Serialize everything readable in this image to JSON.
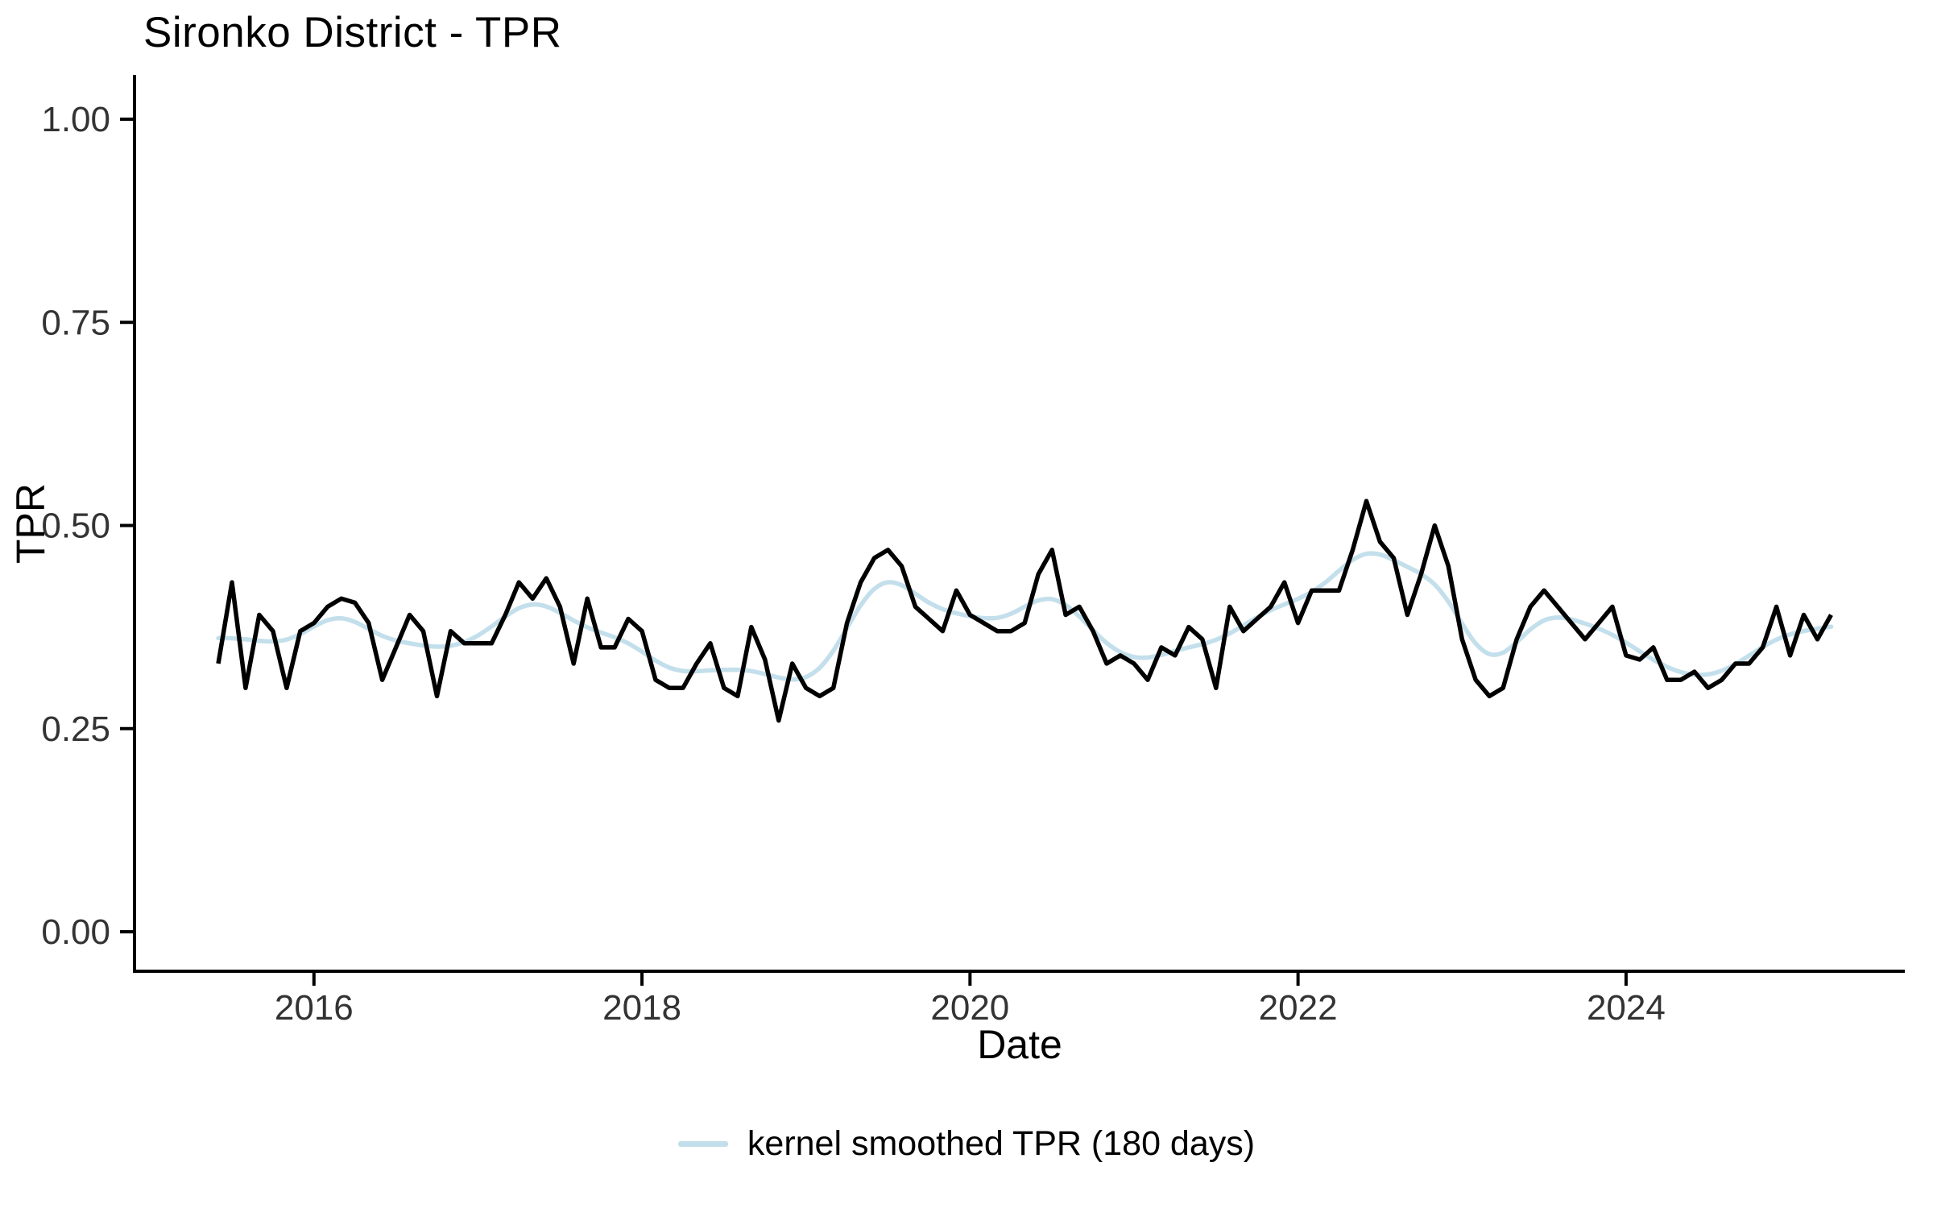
{
  "title": "Sironko District - TPR",
  "axes": {
    "x_label": "Date",
    "y_label": "TPR",
    "y_ticks": [
      {
        "value": 0.0,
        "label": "0.00"
      },
      {
        "value": 0.25,
        "label": "0.25"
      },
      {
        "value": 0.5,
        "label": "0.50"
      },
      {
        "value": 0.75,
        "label": "0.75"
      },
      {
        "value": 1.0,
        "label": "1.00"
      }
    ],
    "x_ticks": [
      {
        "year": 2016,
        "label": "2016"
      },
      {
        "year": 2018,
        "label": "2018"
      },
      {
        "year": 2020,
        "label": "2020"
      },
      {
        "year": 2022,
        "label": "2022"
      },
      {
        "year": 2024,
        "label": "2024"
      }
    ]
  },
  "legend": {
    "label": "kernel smoothed TPR (180 days)",
    "line_color": "#c3dfeb"
  },
  "colors": {
    "raw_line": "#000000",
    "smoothed_line": "#c3dfeb",
    "axis": "#000000",
    "tick_text": "#333333"
  },
  "chart_data": {
    "type": "line",
    "title": "Sironko District - TPR",
    "xlabel": "Date",
    "ylabel": "TPR",
    "ylim": [
      0,
      1
    ],
    "y_tick_values": [
      0,
      0.25,
      0.5,
      0.75,
      1
    ],
    "x_tick_years": [
      2016,
      2018,
      2020,
      2022,
      2024
    ],
    "start_month": "2015-06",
    "end_month": "2025-04",
    "frequency": "monthly",
    "legend_position": "bottom",
    "grid": false,
    "series": [
      {
        "name": "TPR",
        "color": "#000000",
        "values": [
          0.33,
          0.43,
          0.3,
          0.39,
          0.37,
          0.3,
          0.37,
          0.38,
          0.4,
          0.41,
          0.405,
          0.38,
          0.31,
          0.35,
          0.39,
          0.37,
          0.29,
          0.37,
          0.355,
          0.355,
          0.355,
          0.39,
          0.43,
          0.41,
          0.435,
          0.4,
          0.33,
          0.41,
          0.35,
          0.35,
          0.385,
          0.37,
          0.31,
          0.3,
          0.3,
          0.33,
          0.355,
          0.3,
          0.29,
          0.375,
          0.335,
          0.26,
          0.33,
          0.3,
          0.29,
          0.3,
          0.38,
          0.43,
          0.46,
          0.47,
          0.45,
          0.4,
          0.385,
          0.37,
          0.42,
          0.39,
          0.38,
          0.37,
          0.37,
          0.38,
          0.44,
          0.47,
          0.39,
          0.4,
          0.37,
          0.33,
          0.34,
          0.33,
          0.31,
          0.35,
          0.34,
          0.375,
          0.36,
          0.3,
          0.4,
          0.37,
          0.385,
          0.4,
          0.43,
          0.38,
          0.42,
          0.42,
          0.42,
          0.47,
          0.53,
          0.48,
          0.46,
          0.39,
          0.44,
          0.5,
          0.45,
          0.36,
          0.31,
          0.29,
          0.3,
          0.36,
          0.4,
          0.42,
          0.4,
          0.38,
          0.36,
          0.38,
          0.4,
          0.34,
          0.335,
          0.35,
          0.31,
          0.31,
          0.32,
          0.3,
          0.31,
          0.33,
          0.33,
          0.35,
          0.4,
          0.34,
          0.39,
          0.36,
          0.39
        ]
      },
      {
        "name": "kernel smoothed TPR (180 days)",
        "color": "#c3dfeb",
        "bandwidth_days": 180,
        "derived_from": "TPR"
      }
    ]
  }
}
